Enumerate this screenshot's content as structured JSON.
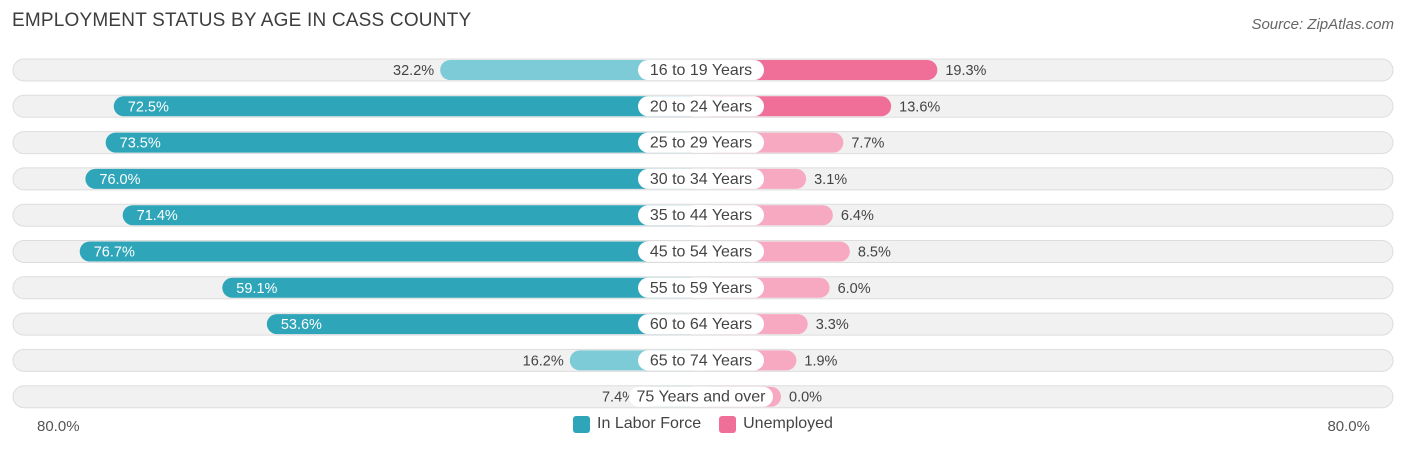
{
  "title": "EMPLOYMENT STATUS BY AGE IN CASS COUNTY",
  "source": "Source: ZipAtlas.com",
  "colors": {
    "labor": "#2ea5b8",
    "labor_light": "#7ccbd6",
    "unemployed": "#f06f98",
    "unemployed_light": "#f6a9c1",
    "row_bg": "#f1f1f1",
    "row_border": "#dddddd"
  },
  "legend": {
    "labor_label": "In Labor Force",
    "unemployed_label": "Unemployed"
  },
  "axis": {
    "left_label": "80.0%",
    "right_label": "80.0%"
  },
  "chart_data": {
    "type": "bar",
    "orientation": "diverging-horizontal",
    "title": "EMPLOYMENT STATUS BY AGE IN CASS COUNTY",
    "categories": [
      "16 to 19 Years",
      "20 to 24 Years",
      "25 to 29 Years",
      "30 to 34 Years",
      "35 to 44 Years",
      "45 to 54 Years",
      "55 to 59 Years",
      "60 to 64 Years",
      "65 to 74 Years",
      "75 Years and over"
    ],
    "series": [
      {
        "name": "In Labor Force",
        "values": [
          32.2,
          72.5,
          73.5,
          76.0,
          71.4,
          76.7,
          59.1,
          53.6,
          16.2,
          7.4
        ],
        "labels": [
          "32.2%",
          "72.5%",
          "73.5%",
          "76.0%",
          "71.4%",
          "76.7%",
          "59.1%",
          "53.6%",
          "16.2%",
          "7.4%"
        ]
      },
      {
        "name": "Unemployed",
        "values": [
          19.3,
          13.6,
          7.7,
          3.1,
          6.4,
          8.5,
          6.0,
          3.3,
          1.9,
          0.0
        ],
        "labels": [
          "19.3%",
          "13.6%",
          "7.7%",
          "3.1%",
          "6.4%",
          "8.5%",
          "6.0%",
          "3.3%",
          "1.9%",
          "0.0%"
        ]
      }
    ],
    "xlim": [
      -80,
      80
    ],
    "legend_position": "bottom-center"
  }
}
